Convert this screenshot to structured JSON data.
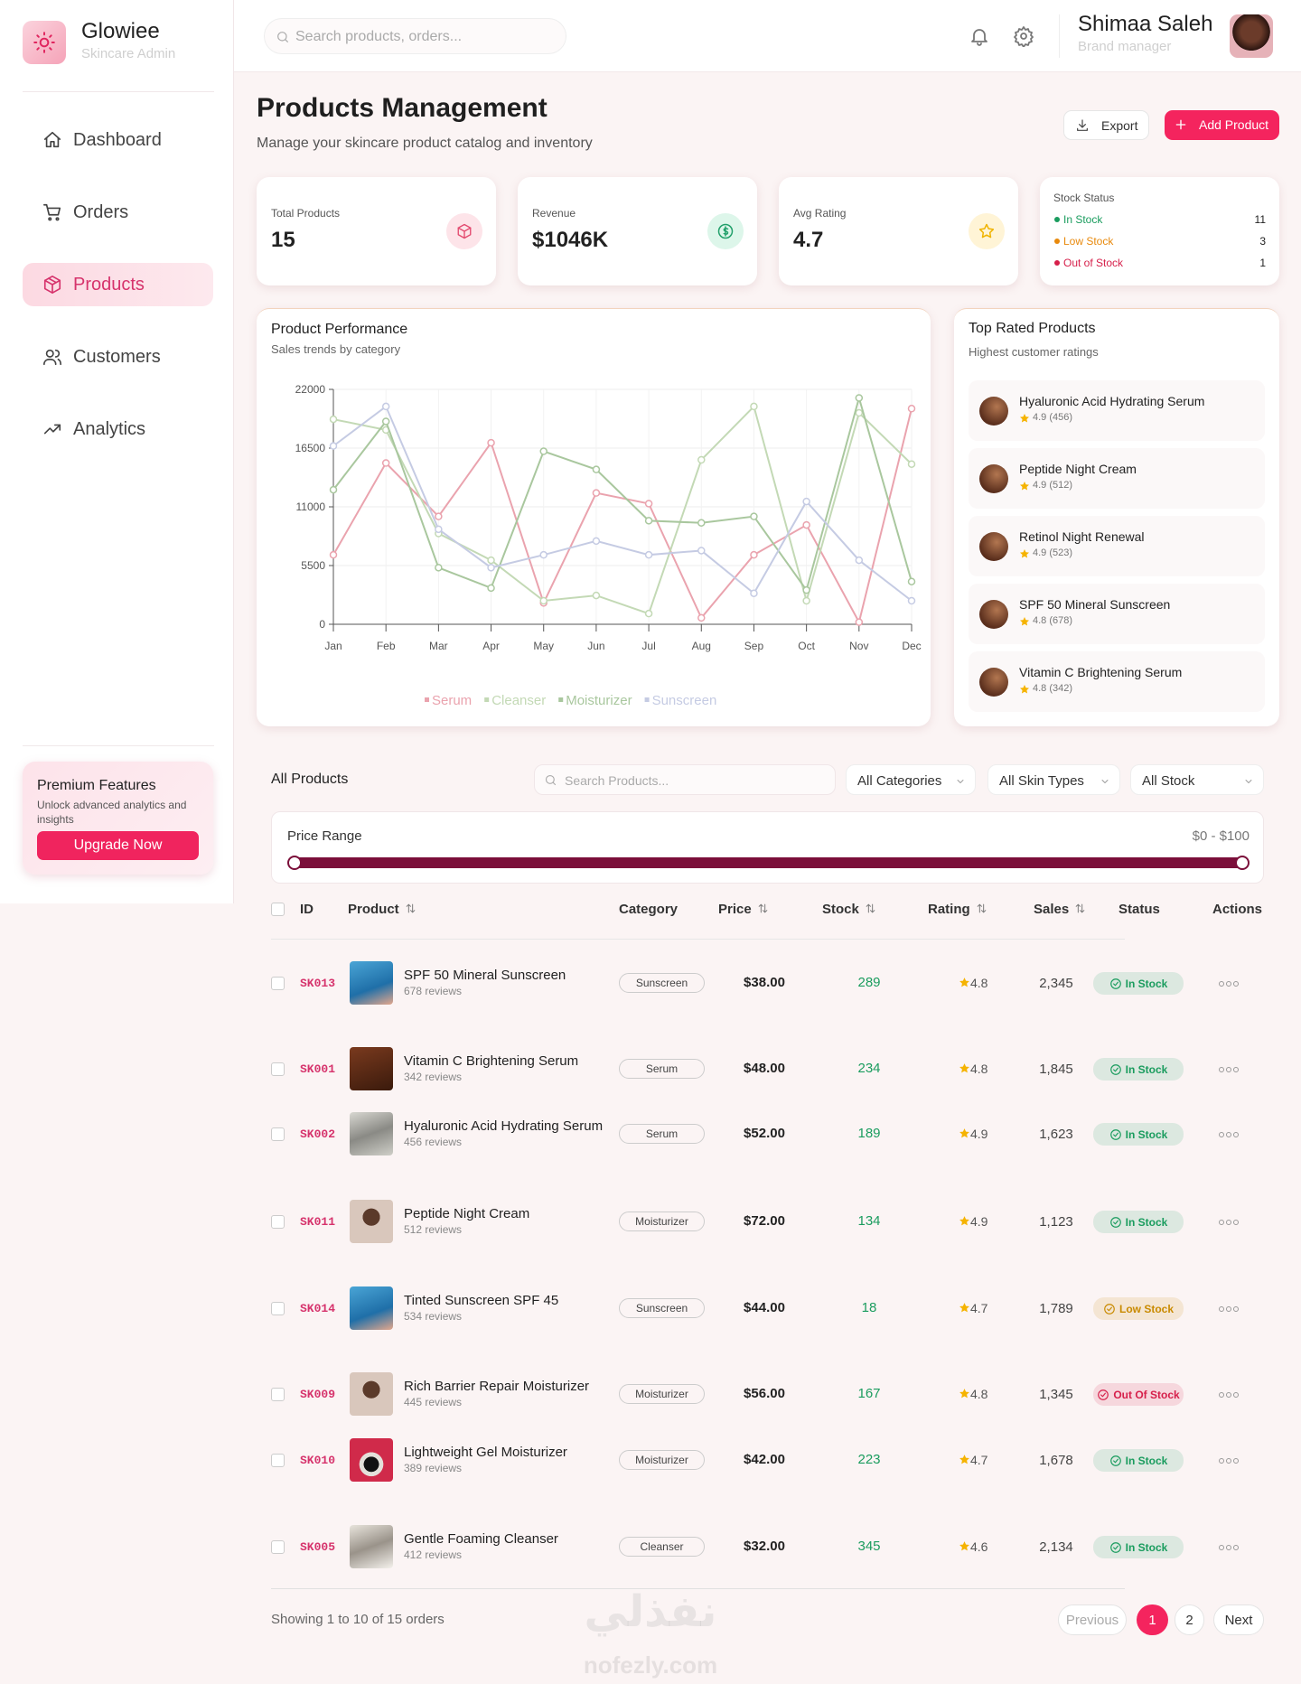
{
  "sidebar": {
    "brand": "Glowiee",
    "tagline": "Skincare Admin",
    "nav": [
      {
        "label": "Dashboard",
        "active": false
      },
      {
        "label": "Orders",
        "active": false
      },
      {
        "label": "Products",
        "active": true
      },
      {
        "label": "Customers",
        "active": false
      },
      {
        "label": "Analytics",
        "active": false
      }
    ],
    "premium": {
      "title": "Premium Features",
      "text": "Unlock advanced analytics and insights",
      "button": "Upgrade Now"
    }
  },
  "header": {
    "search_placeholder": "Search products, orders...",
    "user_name": "Shimaa Saleh",
    "user_role": "Brand manager"
  },
  "page": {
    "title": "Products Management",
    "subtitle": "Manage your skincare product catalog and inventory",
    "export": "Export",
    "add": "Add Product"
  },
  "stats": [
    {
      "label": "Total Products",
      "value": 15
    },
    {
      "label": "Revenue",
      "value": "$1046K"
    },
    {
      "label": "Avg Rating",
      "value": 4.7
    }
  ],
  "stock_status": {
    "title": "Stock Status",
    "items": [
      {
        "label": "In Stock",
        "count": 11,
        "color": "#1a9c5e"
      },
      {
        "label": "Low Stock",
        "count": 3,
        "color": "#e8890c"
      },
      {
        "label": "Out of Stock",
        "count": 1,
        "color": "#d61f4a"
      }
    ]
  },
  "chart_data": {
    "type": "line",
    "title": "Product Performance",
    "subtitle": "Sales trends by category",
    "categories": [
      "Jan",
      "Feb",
      "Mar",
      "Apr",
      "May",
      "Jun",
      "Jul",
      "Aug",
      "Sep",
      "Oct",
      "Nov",
      "Dec"
    ],
    "series": [
      {
        "name": "Serum",
        "color": "#eaa3ae",
        "values": [
          6500,
          15100,
          10100,
          17000,
          2000,
          12300,
          11300,
          600,
          6500,
          9300,
          200,
          20200
        ]
      },
      {
        "name": "Cleanser",
        "color": "#c3d9b5",
        "values": [
          19200,
          18200,
          8500,
          6000,
          2200,
          2700,
          1000,
          15400,
          20400,
          2200,
          19800,
          15000
        ]
      },
      {
        "name": "Moisturizer",
        "color": "#a9c79e",
        "values": [
          12600,
          19000,
          5300,
          3400,
          16200,
          14500,
          9700,
          9500,
          10100,
          3200,
          21200,
          4000
        ]
      },
      {
        "name": "Sunscreen",
        "color": "#c5cbe3",
        "values": [
          16700,
          20400,
          8900,
          5300,
          6500,
          7800,
          6500,
          6900,
          2900,
          11500,
          6000,
          2200
        ]
      }
    ],
    "ylim": [
      0,
      22000
    ],
    "yticks": [
      0,
      5500,
      11000,
      16500,
      22000
    ],
    "grid": true
  },
  "top_rated": {
    "title": "Top Rated Products",
    "subtitle": "Highest customer ratings",
    "items": [
      {
        "name": "Hyaluronic Acid Hydrating Serum",
        "rating": "4.9 (456)"
      },
      {
        "name": "Peptide Night Cream",
        "rating": "4.9 (512)"
      },
      {
        "name": "Retinol Night Renewal",
        "rating": "4.9 (523)"
      },
      {
        "name": "SPF 50 Mineral Sunscreen",
        "rating": "4.8 (678)"
      },
      {
        "name": "Vitamin C Brightening Serum",
        "rating": "4.8 (342)"
      }
    ]
  },
  "products": {
    "title": "All Products",
    "search_placeholder": "Search Products...",
    "filters": [
      "All Categories",
      "All Skin Types",
      "All Stock"
    ],
    "price_label": "Price Range",
    "price_value": "$0 - $100",
    "columns": [
      "ID",
      "Product",
      "Category",
      "Price",
      "Stock",
      "Rating",
      "Sales",
      "Status",
      "Actions"
    ],
    "rows": [
      {
        "id": "SK013",
        "name": "SPF 50 Mineral Sunscreen",
        "reviews": "678 reviews",
        "category": "Sunscreen",
        "price": "$38.00",
        "stock": 289,
        "rating": 4.8,
        "sales": "2,345",
        "status": "In Stock",
        "status_color": "#1a9c5e"
      },
      {
        "id": "SK001",
        "name": "Vitamin C Brightening Serum",
        "reviews": "342 reviews",
        "category": "Serum",
        "price": "$48.00",
        "stock": 234,
        "rating": 4.8,
        "sales": "1,845",
        "status": "In Stock",
        "status_color": "#1a9c5e"
      },
      {
        "id": "SK002",
        "name": "Hyaluronic Acid Hydrating Serum",
        "reviews": "456 reviews",
        "category": "Serum",
        "price": "$52.00",
        "stock": 189,
        "rating": 4.9,
        "sales": "1,623",
        "status": "In Stock",
        "status_color": "#1a9c5e"
      },
      {
        "id": "SK011",
        "name": "Peptide Night Cream",
        "reviews": "512 reviews",
        "category": "Moisturizer",
        "price": "$72.00",
        "stock": 134,
        "rating": 4.9,
        "sales": "1,123",
        "status": "In Stock",
        "status_color": "#1a9c5e"
      },
      {
        "id": "SK014",
        "name": "Tinted Sunscreen SPF 45",
        "reviews": "534 reviews",
        "category": "Sunscreen",
        "price": "$44.00",
        "stock": 18,
        "rating": 4.7,
        "sales": "1,789",
        "status": "Low Stock",
        "status_color": "#c98a00"
      },
      {
        "id": "SK009",
        "name": "Rich Barrier Repair Moisturizer",
        "reviews": "445 reviews",
        "category": "Moisturizer",
        "price": "$56.00",
        "stock": 167,
        "rating": 4.8,
        "sales": "1,345",
        "status": "Out Of Stock",
        "status_color": "#d61f4a"
      },
      {
        "id": "SK010",
        "name": "Lightweight Gel Moisturizer",
        "reviews": "389 reviews",
        "category": "Moisturizer",
        "price": "$42.00",
        "stock": 223,
        "rating": 4.7,
        "sales": "1,678",
        "status": "In Stock",
        "status_color": "#1a9c5e"
      },
      {
        "id": "SK005",
        "name": "Gentle Foaming Cleanser",
        "reviews": "412 reviews",
        "category": "Cleanser",
        "price": "$32.00",
        "stock": 345,
        "rating": 4.6,
        "sales": "2,134",
        "status": "In Stock",
        "status_color": "#1a9c5e"
      }
    ],
    "footer": "Showing 1 to 10 of 15 orders",
    "pagination": [
      "Previous",
      "1",
      "2",
      "Next"
    ]
  },
  "watermark": [
    "نفذلي",
    "nofezly.com"
  ]
}
